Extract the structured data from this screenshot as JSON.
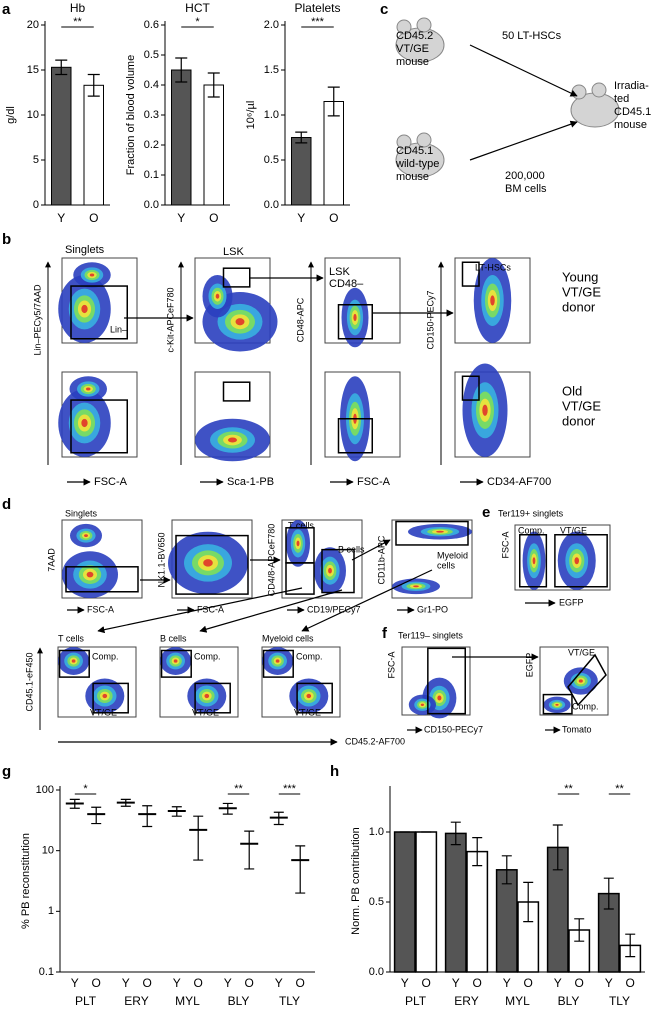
{
  "panel_labels": [
    "a",
    "b",
    "c",
    "d",
    "e",
    "f",
    "g",
    "h"
  ],
  "chart_data": [
    {
      "type": "bar",
      "title": "Hb",
      "ylabel": "g/dl",
      "categories": [
        "Y",
        "O"
      ],
      "values": [
        15.3,
        13.3
      ],
      "errors": [
        0.8,
        1.2
      ],
      "colors": [
        "#555555",
        "#ffffff"
      ],
      "ylim": [
        0,
        20
      ],
      "yticks": [
        0,
        5,
        10,
        15,
        20
      ],
      "significance": "**"
    },
    {
      "type": "bar",
      "title": "HCT",
      "ylabel": "Fraction of blood volume",
      "categories": [
        "Y",
        "O"
      ],
      "values": [
        0.45,
        0.4
      ],
      "errors": [
        0.04,
        0.04
      ],
      "colors": [
        "#555555",
        "#ffffff"
      ],
      "ylim": [
        0,
        0.6
      ],
      "yticks": [
        {
          "value": 0,
          "label": "0.0"
        },
        0.1,
        0.2,
        0.3,
        0.4,
        0.5,
        0.6
      ],
      "significance": "*"
    },
    {
      "type": "bar",
      "title": "Platelets",
      "ylabel": "10⁶/µl",
      "categories": [
        "Y",
        "O"
      ],
      "values": [
        0.75,
        1.15
      ],
      "errors": [
        0.06,
        0.16
      ],
      "colors": [
        "#555555",
        "#ffffff"
      ],
      "ylim": [
        0,
        2.0
      ],
      "yticks": [
        {
          "value": 0,
          "label": "0.0"
        },
        0.5,
        {
          "value": 1,
          "label": "1.0"
        },
        1.5,
        {
          "value": 2,
          "label": "2.0"
        }
      ],
      "significance": "***"
    },
    {
      "type": "dot",
      "ylabel": "% PB reconstitution",
      "log_scale": true,
      "categories": [
        "PLT",
        "ERY",
        "MYL",
        "BLY",
        "TLY"
      ],
      "series": [
        {
          "name": "Y",
          "color": "#000000",
          "values": [
            60,
            62,
            45,
            50,
            35
          ],
          "errors": [
            10,
            8,
            8,
            10,
            8
          ]
        },
        {
          "name": "O",
          "color": "#000000",
          "values": [
            40,
            40,
            22,
            13,
            7
          ],
          "errors": [
            12,
            15,
            15,
            8,
            5
          ]
        }
      ],
      "ylim": [
        0.1,
        100
      ],
      "yticks": [
        0.1,
        1,
        10,
        100
      ],
      "significance": [
        "*",
        null,
        null,
        "**",
        "***"
      ]
    },
    {
      "type": "groupbar",
      "ylabel": "Norm. PB contribution",
      "categories": [
        "PLT",
        "ERY",
        "MYL",
        "BLY",
        "TLY"
      ],
      "series": [
        {
          "name": "Y",
          "color": "#555555",
          "values": [
            1,
            0.99,
            0.73,
            0.89,
            0.56
          ],
          "errors": [
            0,
            0.08,
            0.1,
            0.16,
            0.11
          ]
        },
        {
          "name": "O",
          "color": "#ffffff",
          "values": [
            1,
            0.86,
            0.5,
            0.3,
            0.19
          ],
          "errors": [
            0,
            0.1,
            0.14,
            0.08,
            0.08
          ]
        }
      ],
      "ylim": [
        0,
        1.3
      ],
      "yticks": [
        {
          "value": 0,
          "label": "0.0"
        },
        0.5,
        {
          "value": 1,
          "label": "1.0"
        }
      ],
      "significance": [
        null,
        null,
        null,
        "**",
        "**"
      ]
    }
  ],
  "panel_b": {
    "gates": [
      "Singlets",
      "Lin–",
      "LSK",
      [
        "LSK",
        "CD48–"
      ],
      "LT-HSCs"
    ],
    "x_labels": [
      "FSC-A",
      "Sca-1-PB",
      "FSC-A",
      "CD34-AF700"
    ],
    "y_labels": [
      "Lin–PECy5/7AAD",
      "c-Kit-APCeF780",
      "CD48-APC",
      "CD150-PECy7"
    ],
    "rows": [
      [
        "Young",
        "VT/GE",
        "donor"
      ],
      [
        "Old",
        "VT/GE",
        "donor"
      ]
    ]
  },
  "panel_c": {
    "donor1": [
      "CD45.2",
      "VT/GE",
      "mouse"
    ],
    "cells1": "50 LT-HSCs",
    "recipient": [
      "Irradia-",
      "ted",
      "CD45.1",
      "mouse"
    ],
    "donor2": [
      "CD45.1",
      "wild-type",
      "mouse"
    ],
    "cells2": [
      "200,000",
      "BM cells"
    ]
  },
  "panel_d": {
    "gates": [
      "Singlets",
      "T cells",
      "B cells",
      [
        "Myeloid",
        "cells"
      ]
    ],
    "x_labels": [
      "FSC-A",
      "FSC-A",
      "CD19/PECy7",
      "Gr1-PO"
    ],
    "y_labels": [
      "7AAD",
      "NK1.1-BV650",
      "CD4/8-APCeF780",
      "CD11b-APC"
    ],
    "bottom_titles": [
      "T cells",
      "B cells",
      "Myeloid cells"
    ],
    "bottom_y_label": "CD45.1-eF450",
    "bottom_x_label": "CD45.2-AF700",
    "bottom_gates": [
      "Comp.",
      "VT/GE"
    ]
  },
  "panel_e": {
    "title": "Ter119+ singlets",
    "gates": [
      "Comp.",
      "VT/GE"
    ],
    "x_label": "EGFP",
    "y_label": "FSC-A"
  },
  "panel_f": {
    "title": "Ter119– singlets",
    "x_labels": [
      "CD150-PECy7",
      "Tomato"
    ],
    "y_labels": [
      "FSC-A",
      "EGFP"
    ],
    "gates": [
      "VT/GE",
      "Comp."
    ]
  }
}
